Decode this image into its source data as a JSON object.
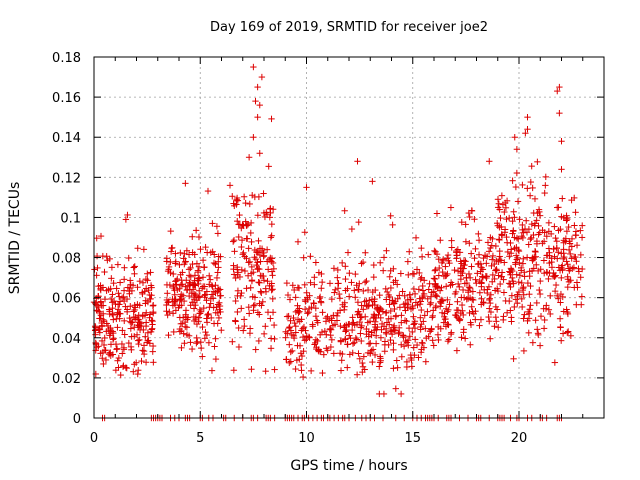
{
  "chart_data": {
    "type": "scatter",
    "title": "Day 169 of 2019, SRMTID for receiver joe2",
    "xlabel": "GPS time / hours",
    "ylabel": "SRMTID / TECUs",
    "xlim": [
      0,
      24
    ],
    "ylim": [
      0,
      0.18
    ],
    "x_ticks": [
      0,
      5,
      10,
      15,
      20
    ],
    "x_tick_labels": [
      "0",
      "5",
      "10",
      "15",
      "20"
    ],
    "y_ticks": [
      0,
      0.02,
      0.04,
      0.06,
      0.08,
      0.1,
      0.12,
      0.14,
      0.16,
      0.18
    ],
    "y_tick_labels": [
      "0",
      "0.02",
      "0.04",
      "0.06",
      "0.08",
      "0.1",
      "0.12",
      "0.14",
      "0.16",
      "0.18"
    ],
    "grid": true,
    "marker": "plus",
    "series": [
      {
        "name": "SRMTID",
        "color": "#dd0000",
        "clusters": [
          {
            "x_range": [
              0.0,
              2.8
            ],
            "y_mean": 0.05,
            "y_spread": 0.014,
            "count": 260
          },
          {
            "x_range": [
              3.4,
              6.0
            ],
            "y_mean": 0.06,
            "y_spread": 0.013,
            "count": 240
          },
          {
            "x_range": [
              6.5,
              8.5
            ],
            "y_mean": 0.075,
            "y_spread": 0.02,
            "count": 170
          },
          {
            "x_range": [
              9.0,
              12.0
            ],
            "y_mean": 0.048,
            "y_spread": 0.013,
            "count": 180
          },
          {
            "x_range": [
              12.0,
              16.0
            ],
            "y_mean": 0.05,
            "y_spread": 0.014,
            "count": 300
          },
          {
            "x_range": [
              16.0,
              19.0
            ],
            "y_mean": 0.065,
            "y_spread": 0.014,
            "count": 230
          },
          {
            "x_range": [
              19.0,
              23.0
            ],
            "y_mean": 0.078,
            "y_spread": 0.018,
            "count": 330
          }
        ],
        "peaks": [
          {
            "x": 7.5,
            "y": 0.175
          },
          {
            "x": 7.7,
            "y": 0.165
          },
          {
            "x": 7.9,
            "y": 0.17
          },
          {
            "x": 7.6,
            "y": 0.158
          },
          {
            "x": 7.8,
            "y": 0.156
          },
          {
            "x": 7.7,
            "y": 0.15
          },
          {
            "x": 7.5,
            "y": 0.14
          },
          {
            "x": 7.3,
            "y": 0.13
          },
          {
            "x": 7.8,
            "y": 0.132
          },
          {
            "x": 21.9,
            "y": 0.165
          },
          {
            "x": 21.8,
            "y": 0.163
          },
          {
            "x": 21.9,
            "y": 0.152
          },
          {
            "x": 20.4,
            "y": 0.15
          },
          {
            "x": 20.4,
            "y": 0.144
          },
          {
            "x": 20.3,
            "y": 0.142
          },
          {
            "x": 19.8,
            "y": 0.14
          },
          {
            "x": 19.9,
            "y": 0.134
          },
          {
            "x": 12.4,
            "y": 0.128
          },
          {
            "x": 4.3,
            "y": 0.117
          },
          {
            "x": 10.0,
            "y": 0.115
          },
          {
            "x": 18.6,
            "y": 0.128
          },
          {
            "x": 22.0,
            "y": 0.138
          },
          {
            "x": 22.0,
            "y": 0.124
          },
          {
            "x": 6.4,
            "y": 0.116
          },
          {
            "x": 1.5,
            "y": 0.099
          },
          {
            "x": 13.1,
            "y": 0.118
          }
        ],
        "zero_points_x": [
          0.4,
          0.5,
          2.7,
          2.8,
          2.9,
          3.0,
          3.1,
          3.2,
          3.6,
          3.8,
          4.0,
          4.3,
          4.4,
          4.5,
          5.0,
          5.1,
          5.4,
          5.6,
          6.1,
          6.2,
          6.6,
          7.0,
          7.4,
          7.5,
          7.7,
          8.1,
          8.2,
          8.3,
          8.5,
          9.0,
          9.1,
          9.2,
          9.3,
          9.4,
          9.6,
          9.8,
          9.9,
          10.1,
          10.3,
          10.5,
          10.7,
          10.8,
          11.0,
          11.1,
          11.3,
          11.5,
          11.7,
          11.8,
          12.0,
          12.3,
          12.6,
          12.8,
          13.0,
          13.2,
          13.6,
          14.2,
          14.6,
          15.0,
          15.2,
          15.4,
          15.6,
          15.7,
          15.8,
          15.9,
          16.0,
          16.2,
          16.6,
          16.7,
          16.8,
          17.2,
          17.6,
          18.0,
          18.1,
          18.2,
          18.6,
          19.0,
          19.1,
          19.2,
          19.3,
          19.6,
          19.9,
          20.0,
          20.4,
          20.6,
          21.0,
          21.1,
          21.3,
          21.8,
          21.9,
          22.0
        ]
      }
    ]
  }
}
